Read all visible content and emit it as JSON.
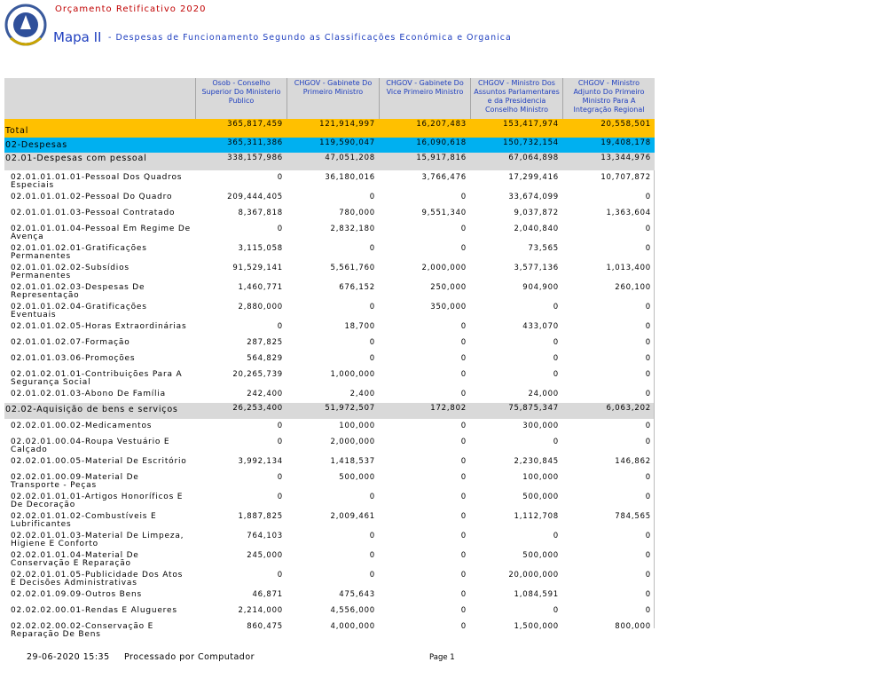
{
  "header": {
    "title": "Orçamento Retificativo 2020",
    "map": "Mapa II",
    "subtitle": "- Despesas de Funcionamento Segundo as Classificações Económica e Organica"
  },
  "table": {
    "columns": [
      "Osob - Conselho Superior Do Ministerio Publico",
      "CHGOV - Gabinete Do Primeiro Ministro",
      "CHGOV - Gabinete Do Vice Primeiro Ministro",
      "CHGOV - Ministro Dos Assuntos Parlamentares e da Presidencia Conselho Ministro",
      "CHGOV - Ministro Adjunto Do Primeiro Ministro Para A Integração Regional"
    ],
    "rows": [
      {
        "label": "Total",
        "values": [
          "365,817,459",
          "121,914,997",
          "16,207,483",
          "153,417,974",
          "20,558,501"
        ]
      },
      {
        "label": "02-Despesas",
        "values": [
          "365,311,386",
          "119,590,047",
          "16,090,618",
          "150,732,154",
          "19,408,178"
        ]
      },
      {
        "label": "02.01-Despesas com pessoal",
        "values": [
          "338,157,986",
          "47,051,208",
          "15,917,816",
          "67,064,898",
          "13,344,976"
        ]
      },
      {
        "label": "02.01.01.01.01-Pessoal Dos Quadros Especiais",
        "values": [
          "0",
          "36,180,016",
          "3,766,476",
          "17,299,416",
          "10,707,872"
        ]
      },
      {
        "label": "02.01.01.01.02-Pessoal Do Quadro",
        "values": [
          "209,444,405",
          "0",
          "0",
          "33,674,099",
          "0"
        ]
      },
      {
        "label": "02.01.01.01.03-Pessoal Contratado",
        "values": [
          "8,367,818",
          "780,000",
          "9,551,340",
          "9,037,872",
          "1,363,604"
        ]
      },
      {
        "label": "02.01.01.01.04-Pessoal Em Regime De Avença",
        "values": [
          "0",
          "2,832,180",
          "0",
          "2,040,840",
          "0"
        ]
      },
      {
        "label": "02.01.01.02.01-Gratificações Permanentes",
        "values": [
          "3,115,058",
          "0",
          "0",
          "73,565",
          "0"
        ]
      },
      {
        "label": "02.01.01.02.02-Subsídios Permanentes",
        "values": [
          "91,529,141",
          "5,561,760",
          "2,000,000",
          "3,577,136",
          "1,013,400"
        ]
      },
      {
        "label": "02.01.01.02.03-Despesas De Representação",
        "values": [
          "1,460,771",
          "676,152",
          "250,000",
          "904,900",
          "260,100"
        ]
      },
      {
        "label": "02.01.01.02.04-Gratificações Eventuais",
        "values": [
          "2,880,000",
          "0",
          "350,000",
          "0",
          "0"
        ]
      },
      {
        "label": "02.01.01.02.05-Horas Extraordinárias",
        "values": [
          "0",
          "18,700",
          "0",
          "433,070",
          "0"
        ]
      },
      {
        "label": "02.01.01.02.07-Formação",
        "values": [
          "287,825",
          "0",
          "0",
          "0",
          "0"
        ]
      },
      {
        "label": "02.01.01.03.06-Promoções",
        "values": [
          "564,829",
          "0",
          "0",
          "0",
          "0"
        ]
      },
      {
        "label": "02.01.02.01.01-Contribuições Para A Segurança Social",
        "values": [
          "20,265,739",
          "1,000,000",
          "0",
          "0",
          "0"
        ]
      },
      {
        "label": "02.01.02.01.03-Abono De Família",
        "values": [
          "242,400",
          "2,400",
          "0",
          "24,000",
          "0"
        ]
      },
      {
        "label": "02.02-Aquisição de bens e serviços",
        "values": [
          "26,253,400",
          "51,972,507",
          "172,802",
          "75,875,347",
          "6,063,202"
        ]
      },
      {
        "label": "02.02.01.00.02-Medicamentos",
        "values": [
          "0",
          "100,000",
          "0",
          "300,000",
          "0"
        ]
      },
      {
        "label": "02.02.01.00.04-Roupa Vestuário E Calçado",
        "values": [
          "0",
          "2,000,000",
          "0",
          "0",
          "0"
        ]
      },
      {
        "label": "02.02.01.00.05-Material De Escritório",
        "values": [
          "3,992,134",
          "1,418,537",
          "0",
          "2,230,845",
          "146,862"
        ]
      },
      {
        "label": "02.02.01.00.09-Material De Transporte - Peças",
        "values": [
          "0",
          "500,000",
          "0",
          "100,000",
          "0"
        ]
      },
      {
        "label": "02.02.01.01.01-Artigos Honoríficos E De Decoração",
        "values": [
          "0",
          "0",
          "0",
          "500,000",
          "0"
        ]
      },
      {
        "label": "02.02.01.01.02-Combustíveis E Lubrificantes",
        "values": [
          "1,887,825",
          "2,009,461",
          "0",
          "1,112,708",
          "784,565"
        ]
      },
      {
        "label": "02.02.01.01.03-Material De Limpeza, Higiene E Conforto",
        "values": [
          "764,103",
          "0",
          "0",
          "0",
          "0"
        ]
      },
      {
        "label": "02.02.01.01.04-Material De Conservação E Reparação",
        "values": [
          "245,000",
          "0",
          "0",
          "500,000",
          "0"
        ]
      },
      {
        "label": "02.02.01.01.05-Publicidade Dos Atos E Decisões Administrativas",
        "values": [
          "0",
          "0",
          "0",
          "20,000,000",
          "0"
        ]
      },
      {
        "label": "02.02.01.09.09-Outros Bens",
        "values": [
          "46,871",
          "475,643",
          "0",
          "1,084,591",
          "0"
        ]
      },
      {
        "label": "02.02.02.00.01-Rendas E Alugueres",
        "values": [
          "2,214,000",
          "4,556,000",
          "0",
          "0",
          "0"
        ]
      },
      {
        "label": "02.02.02.00.02-Conservação E Reparação De Bens",
        "values": [
          "860,475",
          "4,000,000",
          "0",
          "1,500,000",
          "800,000"
        ]
      }
    ]
  },
  "footer": {
    "date": "29-06-2020 15:35",
    "processed": "Processado por Computador",
    "page": "Page 1"
  }
}
